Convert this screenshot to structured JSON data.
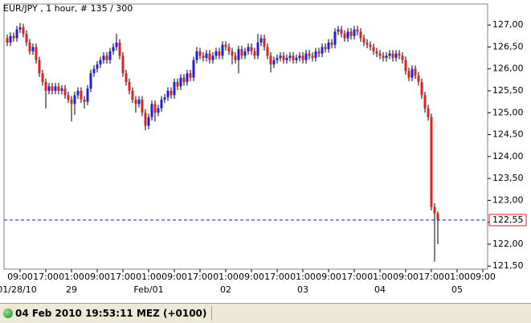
{
  "chart_data": {
    "type": "candlestick",
    "title": "EUR/JPY , 1 hour, # 135 / 300",
    "up_color": "#1f1fe0",
    "down_color": "#e02020",
    "xlim": [
      -1,
      149.5
    ],
    "ylim": [
      121.43,
      127.48
    ],
    "yticks": [
      {
        "value": 127,
        "label": "127,00"
      },
      {
        "value": 126.5,
        "label": "126,50"
      },
      {
        "value": 126,
        "label": "126,00"
      },
      {
        "value": 125.5,
        "label": "125,50"
      },
      {
        "value": 125,
        "label": "125,00"
      },
      {
        "value": 124.5,
        "label": "124,50"
      },
      {
        "value": 124,
        "label": "124,00"
      },
      {
        "value": 123.5,
        "label": "123,50"
      },
      {
        "value": 123,
        "label": "123,00"
      },
      {
        "value": 122.5,
        "label": "122,50"
      },
      {
        "value": 122,
        "label": "122,00"
      },
      {
        "value": 121.5,
        "label": "121,50"
      }
    ],
    "xticks": [
      {
        "value": 4,
        "label": "09:00"
      },
      {
        "value": 12,
        "label": "17:00"
      },
      {
        "value": 20,
        "label": "01:00"
      },
      {
        "value": 28,
        "label": "09:00"
      },
      {
        "value": 36,
        "label": "17:00"
      },
      {
        "value": 44,
        "label": "01:00"
      },
      {
        "value": 52,
        "label": "09:00"
      },
      {
        "value": 60,
        "label": "17:00"
      },
      {
        "value": 68,
        "label": "01:00"
      },
      {
        "value": 76,
        "label": "09:00"
      },
      {
        "value": 84,
        "label": "17:00"
      },
      {
        "value": 92,
        "label": "01:00"
      },
      {
        "value": 100,
        "label": "09:00"
      },
      {
        "value": 108,
        "label": "17:00"
      },
      {
        "value": 116,
        "label": "01:00"
      },
      {
        "value": 124,
        "label": "09:00"
      },
      {
        "value": 132,
        "label": "17:00"
      },
      {
        "value": 140,
        "label": "01:00"
      },
      {
        "value": 148,
        "label": "09:00"
      }
    ],
    "date_ticks": [
      {
        "value": 3,
        "label": "01/28/10"
      },
      {
        "value": 20,
        "label": "29"
      },
      {
        "value": 44,
        "label": "Feb/01"
      },
      {
        "value": 68,
        "label": "02"
      },
      {
        "value": 92,
        "label": "03"
      },
      {
        "value": 116,
        "label": "04"
      },
      {
        "value": 140,
        "label": "05"
      }
    ],
    "current_price": {
      "value": 122.55,
      "label": "122,55",
      "color": "#1f1f9f"
    },
    "open": [
      126.7,
      126.6,
      126.75,
      126.7,
      126.9,
      126.95,
      126.8,
      126.6,
      126.4,
      126.5,
      126.2,
      125.9,
      125.7,
      125.5,
      125.6,
      125.5,
      125.6,
      125.5,
      125.55,
      125.4,
      125.3,
      125.2,
      125.4,
      125.5,
      125.3,
      125.25,
      125.55,
      125.9,
      126.0,
      126.1,
      126.2,
      126.3,
      126.2,
      126.4,
      126.5,
      126.6,
      126.3,
      125.9,
      125.7,
      125.5,
      125.3,
      125.2,
      125.3,
      125.0,
      124.7,
      124.9,
      125.2,
      125.0,
      125.1,
      125.3,
      125.35,
      125.5,
      125.4,
      125.7,
      125.6,
      125.8,
      125.7,
      125.9,
      125.8,
      126.2,
      126.4,
      126.3,
      126.25,
      126.35,
      126.2,
      126.3,
      126.4,
      126.3,
      126.55,
      126.5,
      126.4,
      126.3,
      126.2,
      126.45,
      126.3,
      126.4,
      126.5,
      126.4,
      126.3,
      126.6,
      126.7,
      126.5,
      126.3,
      126.1,
      126.2,
      126.25,
      126.3,
      126.2,
      126.25,
      126.3,
      126.2,
      126.25,
      126.3,
      126.2,
      126.35,
      126.3,
      126.25,
      126.4,
      126.35,
      126.5,
      126.45,
      126.6,
      126.55,
      126.85,
      126.9,
      126.8,
      126.7,
      126.85,
      126.75,
      126.9,
      126.85,
      126.7,
      126.6,
      126.55,
      126.5,
      126.4,
      126.35,
      126.3,
      126.25,
      126.3,
      126.35,
      126.25,
      126.35,
      126.3,
      126.2,
      125.95,
      125.8,
      126.0,
      125.85,
      125.7,
      125.4,
      125.1,
      124.9,
      122.85,
      122.7
    ],
    "high": [
      126.78,
      126.83,
      126.83,
      126.98,
      127.05,
      127.03,
      126.88,
      126.68,
      126.58,
      126.58,
      126.28,
      125.98,
      125.78,
      125.68,
      125.68,
      125.68,
      125.68,
      125.63,
      125.63,
      125.48,
      125.38,
      125.48,
      125.58,
      125.58,
      125.38,
      125.63,
      125.98,
      126.08,
      126.18,
      126.28,
      126.38,
      126.38,
      126.48,
      126.58,
      126.8,
      126.68,
      126.38,
      125.98,
      125.78,
      125.58,
      125.38,
      125.38,
      125.38,
      125.08,
      124.98,
      125.28,
      125.28,
      125.18,
      125.38,
      125.43,
      125.58,
      125.58,
      125.78,
      125.78,
      125.88,
      125.88,
      125.98,
      125.98,
      126.28,
      126.5,
      126.48,
      126.38,
      126.43,
      126.43,
      126.38,
      126.48,
      126.48,
      126.63,
      126.63,
      126.58,
      126.48,
      126.38,
      126.53,
      126.53,
      126.48,
      126.58,
      126.58,
      126.48,
      126.8,
      126.78,
      126.78,
      126.58,
      126.38,
      126.28,
      126.33,
      126.38,
      126.38,
      126.33,
      126.38,
      126.38,
      126.33,
      126.38,
      126.38,
      126.43,
      126.43,
      126.38,
      126.48,
      126.48,
      126.58,
      126.58,
      126.68,
      126.68,
      126.93,
      126.98,
      126.98,
      126.88,
      126.93,
      126.93,
      126.98,
      126.98,
      126.93,
      126.78,
      126.68,
      126.63,
      126.58,
      126.48,
      126.43,
      126.38,
      126.38,
      126.43,
      126.43,
      126.43,
      126.43,
      126.38,
      126.28,
      126.03,
      126.08,
      126.08,
      125.93,
      125.78,
      125.48,
      125.18,
      124.98,
      122.93,
      122.75
    ],
    "low": [
      126.52,
      126.52,
      126.62,
      126.62,
      126.82,
      126.72,
      126.52,
      126.32,
      126.32,
      126.12,
      125.82,
      125.62,
      125.1,
      125.42,
      125.42,
      125.42,
      125.42,
      125.42,
      125.32,
      125.22,
      124.8,
      124.95,
      125.32,
      125.22,
      125.1,
      125.17,
      125.47,
      125.82,
      125.92,
      126.02,
      126.12,
      126.12,
      126.12,
      126.32,
      126.42,
      126.22,
      125.82,
      125.62,
      125.42,
      125.22,
      125.0,
      125.12,
      124.92,
      124.6,
      124.62,
      124.82,
      124.8,
      124.92,
      125.02,
      125.22,
      125.27,
      125.32,
      125.32,
      125.52,
      125.52,
      125.62,
      125.62,
      125.72,
      125.72,
      126.12,
      126.22,
      126.17,
      126.17,
      126.12,
      126.12,
      126.22,
      126.22,
      126.22,
      126.42,
      126.32,
      126.1,
      126.12,
      125.9,
      126.22,
      126.22,
      126.32,
      126.32,
      126.22,
      126.22,
      126.52,
      126.42,
      126.22,
      125.92,
      126.02,
      126.12,
      126.17,
      126.12,
      126.12,
      126.17,
      126.12,
      126.12,
      126.17,
      126.12,
      126.12,
      126.22,
      126.17,
      126.17,
      126.27,
      126.27,
      126.37,
      126.37,
      126.47,
      126.47,
      126.77,
      126.72,
      126.62,
      126.62,
      126.67,
      126.67,
      126.77,
      126.62,
      126.52,
      126.47,
      126.42,
      126.32,
      126.27,
      126.22,
      126.17,
      126.17,
      126.22,
      126.17,
      126.17,
      126.22,
      126.12,
      125.87,
      125.72,
      125.72,
      125.77,
      125.62,
      125.32,
      125.0,
      124.82,
      122.77,
      121.6,
      122.0
    ],
    "close": [
      126.6,
      126.75,
      126.7,
      126.9,
      126.95,
      126.8,
      126.6,
      126.4,
      126.5,
      126.2,
      125.9,
      125.7,
      125.5,
      125.6,
      125.5,
      125.6,
      125.5,
      125.55,
      125.4,
      125.3,
      125.2,
      125.4,
      125.5,
      125.3,
      125.25,
      125.55,
      125.9,
      126.0,
      126.1,
      126.2,
      126.3,
      126.2,
      126.4,
      126.5,
      126.6,
      126.3,
      125.9,
      125.7,
      125.5,
      125.3,
      125.2,
      125.3,
      125.0,
      124.7,
      124.9,
      125.2,
      125.0,
      125.1,
      125.3,
      125.35,
      125.5,
      125.4,
      125.7,
      125.6,
      125.8,
      125.7,
      125.9,
      125.8,
      126.2,
      126.4,
      126.3,
      126.25,
      126.35,
      126.2,
      126.3,
      126.4,
      126.3,
      126.55,
      126.5,
      126.4,
      126.3,
      126.2,
      126.45,
      126.3,
      126.4,
      126.5,
      126.4,
      126.3,
      126.6,
      126.7,
      126.5,
      126.3,
      126.1,
      126.2,
      126.25,
      126.3,
      126.2,
      126.25,
      126.3,
      126.2,
      126.25,
      126.3,
      126.2,
      126.35,
      126.3,
      126.25,
      126.4,
      126.35,
      126.5,
      126.45,
      126.6,
      126.55,
      126.85,
      126.9,
      126.8,
      126.7,
      126.85,
      126.75,
      126.9,
      126.85,
      126.7,
      126.6,
      126.55,
      126.5,
      126.4,
      126.35,
      126.3,
      126.25,
      126.3,
      126.35,
      126.25,
      126.35,
      126.3,
      126.2,
      125.95,
      125.8,
      126.0,
      125.85,
      125.7,
      125.4,
      125.1,
      124.9,
      122.85,
      122.7,
      122.55
    ]
  },
  "status_bar": {
    "text": "04 Feb 2010 19:53:11 MEZ (+0100)"
  }
}
